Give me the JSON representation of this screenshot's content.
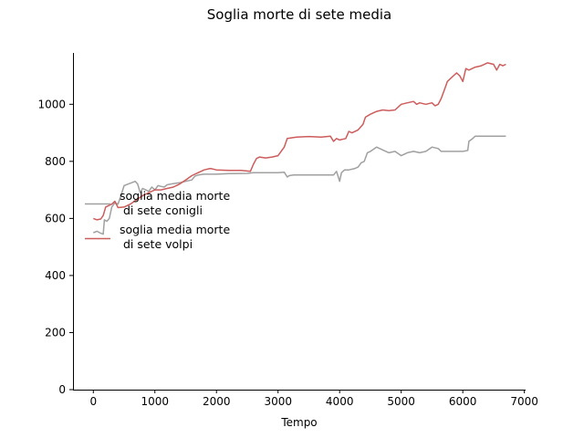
{
  "chart_data": {
    "type": "line",
    "title": "Soglia morte di sete media",
    "xlabel": "Tempo",
    "ylabel": "",
    "xlim": [
      -330,
      7020
    ],
    "ylim": [
      0,
      1180
    ],
    "xticks": [
      0,
      1000,
      2000,
      3000,
      4000,
      5000,
      6000,
      7000
    ],
    "yticks": [
      0,
      200,
      400,
      600,
      800,
      1000
    ],
    "grid": false,
    "legend_position": "center-left",
    "series": [
      {
        "name": "soglia media morte\n di sete conigli",
        "color": "#a0a0a0",
        "points": [
          [
            0,
            550
          ],
          [
            60,
            555
          ],
          [
            120,
            548
          ],
          [
            160,
            545
          ],
          [
            180,
            595
          ],
          [
            220,
            590
          ],
          [
            260,
            600
          ],
          [
            300,
            640
          ],
          [
            350,
            655
          ],
          [
            400,
            650
          ],
          [
            450,
            680
          ],
          [
            500,
            715
          ],
          [
            560,
            720
          ],
          [
            620,
            725
          ],
          [
            680,
            730
          ],
          [
            720,
            720
          ],
          [
            760,
            690
          ],
          [
            800,
            705
          ],
          [
            850,
            700
          ],
          [
            900,
            695
          ],
          [
            950,
            710
          ],
          [
            1000,
            700
          ],
          [
            1050,
            715
          ],
          [
            1100,
            712
          ],
          [
            1150,
            710
          ],
          [
            1200,
            718
          ],
          [
            1300,
            722
          ],
          [
            1400,
            725
          ],
          [
            1500,
            730
          ],
          [
            1600,
            735
          ],
          [
            1650,
            748
          ],
          [
            1700,
            752
          ],
          [
            1800,
            755
          ],
          [
            2000,
            755
          ],
          [
            2200,
            757
          ],
          [
            2500,
            758
          ],
          [
            2600,
            760
          ],
          [
            2800,
            760
          ],
          [
            3000,
            760
          ],
          [
            3100,
            762
          ],
          [
            3150,
            745
          ],
          [
            3180,
            750
          ],
          [
            3250,
            752
          ],
          [
            3400,
            752
          ],
          [
            3600,
            752
          ],
          [
            3800,
            752
          ],
          [
            3900,
            752
          ],
          [
            3950,
            765
          ],
          [
            4000,
            730
          ],
          [
            4030,
            760
          ],
          [
            4080,
            770
          ],
          [
            4150,
            770
          ],
          [
            4250,
            775
          ],
          [
            4300,
            780
          ],
          [
            4350,
            795
          ],
          [
            4400,
            800
          ],
          [
            4450,
            830
          ],
          [
            4500,
            835
          ],
          [
            4600,
            850
          ],
          [
            4700,
            840
          ],
          [
            4800,
            830
          ],
          [
            4900,
            835
          ],
          [
            5000,
            820
          ],
          [
            5100,
            830
          ],
          [
            5200,
            835
          ],
          [
            5300,
            830
          ],
          [
            5400,
            835
          ],
          [
            5500,
            850
          ],
          [
            5600,
            845
          ],
          [
            5650,
            835
          ],
          [
            5800,
            835
          ],
          [
            6000,
            835
          ],
          [
            6080,
            838
          ],
          [
            6100,
            870
          ],
          [
            6150,
            878
          ],
          [
            6200,
            888
          ],
          [
            6400,
            888
          ],
          [
            6700,
            888
          ]
        ]
      },
      {
        "name": "soglia media morte\n di sete volpi",
        "color": "#cd5c5c",
        "points": [
          [
            0,
            600
          ],
          [
            60,
            595
          ],
          [
            120,
            598
          ],
          [
            160,
            610
          ],
          [
            200,
            640
          ],
          [
            250,
            645
          ],
          [
            300,
            650
          ],
          [
            350,
            660
          ],
          [
            400,
            638
          ],
          [
            500,
            640
          ],
          [
            600,
            650
          ],
          [
            700,
            665
          ],
          [
            800,
            680
          ],
          [
            900,
            690
          ],
          [
            1000,
            700
          ],
          [
            1100,
            700
          ],
          [
            1200,
            705
          ],
          [
            1300,
            710
          ],
          [
            1400,
            720
          ],
          [
            1500,
            735
          ],
          [
            1600,
            750
          ],
          [
            1700,
            760
          ],
          [
            1800,
            770
          ],
          [
            1900,
            775
          ],
          [
            2000,
            770
          ],
          [
            2200,
            768
          ],
          [
            2400,
            768
          ],
          [
            2550,
            765
          ],
          [
            2600,
            790
          ],
          [
            2650,
            810
          ],
          [
            2700,
            815
          ],
          [
            2800,
            812
          ],
          [
            2900,
            815
          ],
          [
            3000,
            820
          ],
          [
            3100,
            850
          ],
          [
            3150,
            880
          ],
          [
            3300,
            885
          ],
          [
            3500,
            887
          ],
          [
            3700,
            885
          ],
          [
            3850,
            888
          ],
          [
            3900,
            870
          ],
          [
            3950,
            880
          ],
          [
            4000,
            875
          ],
          [
            4100,
            880
          ],
          [
            4150,
            905
          ],
          [
            4200,
            900
          ],
          [
            4300,
            910
          ],
          [
            4380,
            930
          ],
          [
            4420,
            955
          ],
          [
            4500,
            965
          ],
          [
            4600,
            975
          ],
          [
            4700,
            980
          ],
          [
            4800,
            978
          ],
          [
            4900,
            980
          ],
          [
            5000,
            1000
          ],
          [
            5100,
            1005
          ],
          [
            5200,
            1010
          ],
          [
            5250,
            1000
          ],
          [
            5300,
            1005
          ],
          [
            5400,
            1000
          ],
          [
            5500,
            1005
          ],
          [
            5550,
            995
          ],
          [
            5600,
            1000
          ],
          [
            5650,
            1020
          ],
          [
            5700,
            1050
          ],
          [
            5750,
            1080
          ],
          [
            5800,
            1090
          ],
          [
            5850,
            1100
          ],
          [
            5900,
            1110
          ],
          [
            5950,
            1100
          ],
          [
            6000,
            1080
          ],
          [
            6050,
            1125
          ],
          [
            6100,
            1120
          ],
          [
            6200,
            1130
          ],
          [
            6300,
            1135
          ],
          [
            6400,
            1145
          ],
          [
            6500,
            1140
          ],
          [
            6550,
            1120
          ],
          [
            6600,
            1140
          ],
          [
            6650,
            1135
          ],
          [
            6700,
            1140
          ]
        ]
      }
    ]
  }
}
